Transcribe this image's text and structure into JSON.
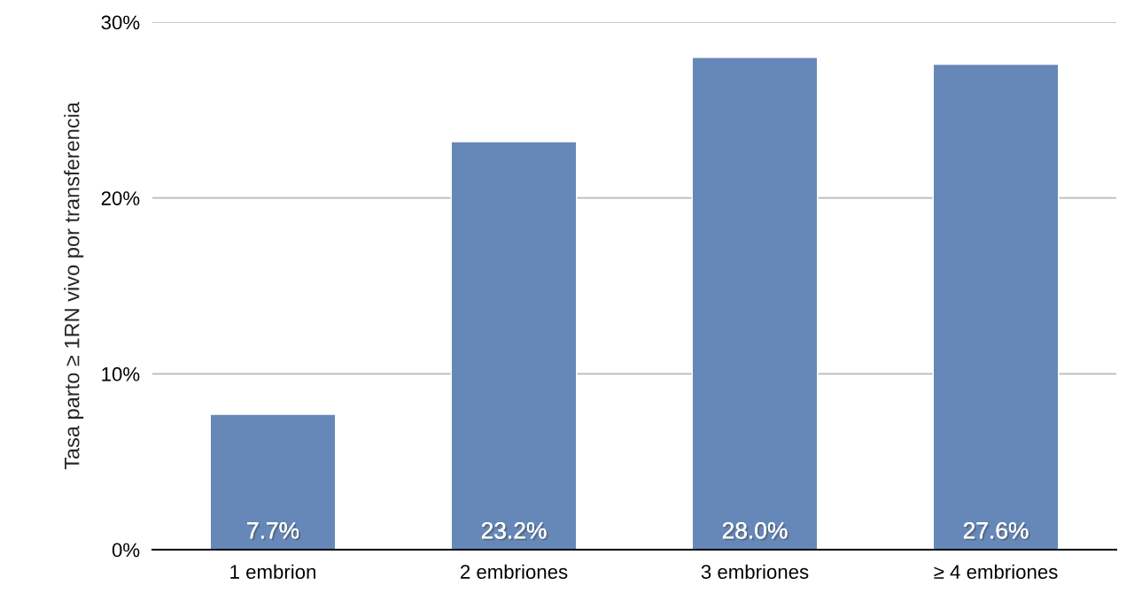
{
  "chart_data": {
    "type": "bar",
    "ylabel": "Tasa parto ≥ 1RN vivo por transferencia",
    "categories": [
      "1 embrion",
      "2 embriones",
      "3 embriones",
      "≥ 4 embriones"
    ],
    "values": [
      7.7,
      23.2,
      28.0,
      27.6
    ],
    "value_labels": [
      "7.7%",
      "23.2%",
      "28.0%",
      "27.6%"
    ],
    "color": "#6688b8",
    "ylim": [
      0,
      30
    ],
    "yticks": [
      {
        "value": 0,
        "label": "0%"
      },
      {
        "value": 10,
        "label": "10%"
      },
      {
        "value": 20,
        "label": "20%"
      },
      {
        "value": 30,
        "label": "30%"
      }
    ],
    "grid": "y"
  }
}
